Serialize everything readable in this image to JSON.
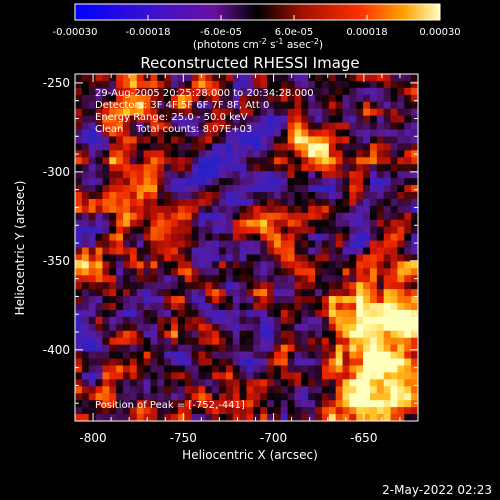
{
  "chart_data": {
    "type": "heatmap",
    "title": "Reconstructed RHESSI Image",
    "colorbar": {
      "ticks": [
        "-0.00030",
        "-0.00018",
        "-6.0e-05",
        "6.0e-05",
        "0.00018",
        "0.00030"
      ],
      "label_main": "(photons cm",
      "label_exp1": "-2",
      "label_mid": " s",
      "label_exp2": "-1",
      "label_end": " asec",
      "label_exp3": "-2",
      "label_close": ")",
      "range": [
        -0.0003,
        0.0003
      ]
    },
    "xlabel": "Heliocentric X (arcsec)",
    "ylabel": "Heliocentric Y (arcsec)",
    "xticks": [
      "-800",
      "-750",
      "-700",
      "-650"
    ],
    "yticks": [
      "-250",
      "-300",
      "-350",
      "-400"
    ],
    "xlim": [
      -810,
      -620
    ],
    "ylim": [
      -440,
      -245
    ],
    "annotations": {
      "time_range": "29-Aug-2005 20:25:28.000 to 20:34:28.000",
      "detectors": "Detectors: 3F 4F 5F 6F 7F 8F, Att 0",
      "energy": "Energy Range: 25.0 - 50.0 keV",
      "method": "Clean    Total counts: 8.07E+03",
      "peak": "Position of Peak = [-752,-441]"
    },
    "colors": {
      "background": "#000000",
      "text": "#ffffff",
      "cold": "#2020c8",
      "hot": "#ffffa0"
    }
  },
  "footer": {
    "timestamp": "2-May-2022 02:23"
  }
}
